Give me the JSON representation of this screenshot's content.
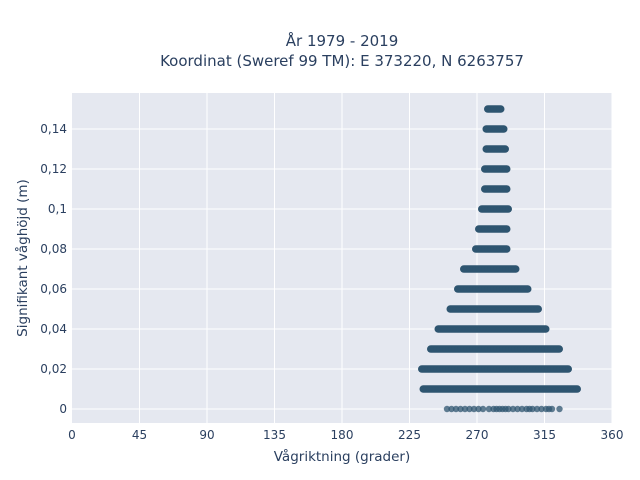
{
  "chart_data": {
    "type": "scatter",
    "title_lines": [
      "År 1979 - 2019",
      "Koordinat (Sweref 99 TM): E 373220, N 6263757"
    ],
    "xlabel": "Vågriktning (grader)",
    "ylabel": "Signifikant våghöjd (m)",
    "xlim": [
      0,
      360
    ],
    "ylim": [
      -0.007,
      0.158
    ],
    "x_ticks": [
      0,
      45,
      90,
      135,
      180,
      225,
      270,
      315,
      360
    ],
    "x_tick_labels": [
      "0",
      "45",
      "90",
      "135",
      "180",
      "225",
      "270",
      "315",
      "360"
    ],
    "y_ticks": [
      0,
      0.02,
      0.04,
      0.06,
      0.08,
      0.1,
      0.12,
      0.14
    ],
    "y_tick_labels": [
      "0",
      "0,02",
      "0,04",
      "0,06",
      "0,08",
      "0,1",
      "0,12",
      "0,14"
    ],
    "grid": true,
    "marker_color": "#2f5570",
    "plot_background": "#e5e8f0",
    "bands": [
      {
        "y": 0.0,
        "x_min": 250,
        "x_max": 325,
        "sparse": true
      },
      {
        "y": 0.01,
        "x_min": 234,
        "x_max": 337,
        "sparse": false
      },
      {
        "y": 0.02,
        "x_min": 233,
        "x_max": 331,
        "sparse": false
      },
      {
        "y": 0.03,
        "x_min": 239,
        "x_max": 325,
        "sparse": false
      },
      {
        "y": 0.04,
        "x_min": 244,
        "x_max": 316,
        "sparse": false
      },
      {
        "y": 0.05,
        "x_min": 252,
        "x_max": 311,
        "sparse": false
      },
      {
        "y": 0.06,
        "x_min": 257,
        "x_max": 304,
        "sparse": false
      },
      {
        "y": 0.07,
        "x_min": 261,
        "x_max": 296,
        "sparse": false
      },
      {
        "y": 0.08,
        "x_min": 269,
        "x_max": 290,
        "sparse": false
      },
      {
        "y": 0.09,
        "x_min": 271,
        "x_max": 290,
        "sparse": false
      },
      {
        "y": 0.1,
        "x_min": 273,
        "x_max": 291,
        "sparse": false
      },
      {
        "y": 0.11,
        "x_min": 275,
        "x_max": 290,
        "sparse": false
      },
      {
        "y": 0.12,
        "x_min": 275,
        "x_max": 290,
        "sparse": false
      },
      {
        "y": 0.13,
        "x_min": 276,
        "x_max": 289,
        "sparse": false
      },
      {
        "y": 0.14,
        "x_min": 276,
        "x_max": 288,
        "sparse": false
      },
      {
        "y": 0.15,
        "x_min": 277,
        "x_max": 286,
        "sparse": false
      }
    ],
    "sparse_points_at_zero": [
      250,
      253,
      256,
      259,
      262,
      265,
      268,
      271,
      274,
      278,
      281,
      283,
      285,
      287,
      289,
      291,
      294,
      297,
      300,
      303,
      305,
      307,
      310,
      313,
      316,
      318,
      320,
      325
    ]
  }
}
